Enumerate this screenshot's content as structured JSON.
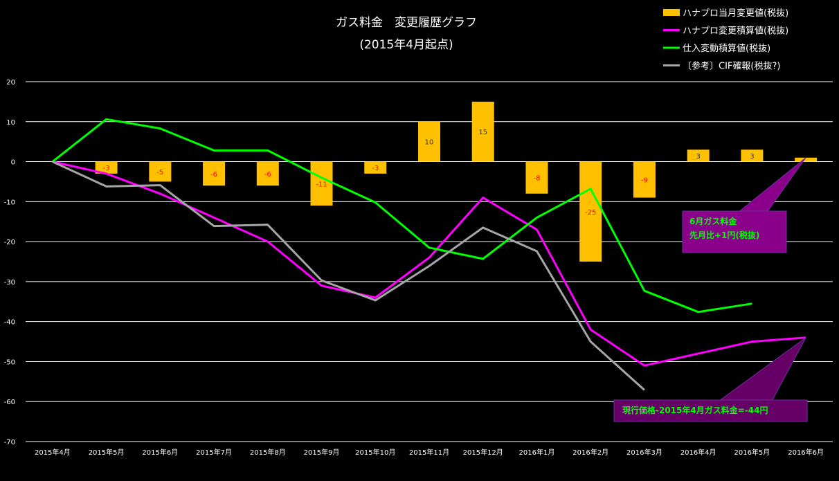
{
  "chart_data": {
    "type": "bar+line",
    "title_line1": "ガス料金　変更履歴グラフ",
    "title_line2": "(2015年4月起点)",
    "ylim": [
      -70,
      20
    ],
    "yticks": [
      20,
      10,
      0,
      -10,
      -20,
      -30,
      -40,
      -50,
      -60,
      -70
    ],
    "grid": true,
    "legend_position": "top-right",
    "categories": [
      "2015年4月",
      "2015年5月",
      "2015年6月",
      "2015年7月",
      "2015年8月",
      "2015年9月",
      "2015年10月",
      "2015年11月",
      "2015年12月",
      "2016年1月",
      "2016年2月",
      "2016年3月",
      "2016年4月",
      "2016年5月",
      "2016年6月"
    ],
    "bars": {
      "name": "ハナプロ当月変更値(税抜)",
      "color": "#FFC000",
      "values": [
        0,
        -3,
        -5,
        -6,
        -6,
        -11,
        -3,
        10,
        15,
        -8,
        -25,
        -9,
        3,
        3,
        1
      ],
      "labels": [
        "",
        "-3",
        "-5",
        "-6",
        "-6",
        "-11",
        "-3",
        "10",
        "15",
        "-8",
        "-25",
        "-9",
        "3",
        "3",
        ""
      ]
    },
    "series": [
      {
        "name": "ハナプロ変更積算値(税抜)",
        "color": "#FF00FF",
        "values": [
          0,
          -3,
          -8,
          -14,
          -20,
          -31,
          -34,
          -24,
          -9,
          -17,
          -42,
          -51,
          -48,
          -45,
          -44
        ]
      },
      {
        "name": "仕入変動積算値(税抜)",
        "color": "#00FF00",
        "values": [
          0,
          10.6,
          8.3,
          2.8,
          2.8,
          -4,
          -10.2,
          -21.5,
          -24.3,
          -14,
          -6.8,
          -32.3,
          -37.6,
          -35.5,
          null
        ]
      },
      {
        "name": "〔参考〕CIF確報(税抜?)",
        "color": "#A6A6A6",
        "values": [
          0,
          -6.2,
          -5.9,
          -16.1,
          -15.8,
          -29.7,
          -34.7,
          -26.1,
          -16.5,
          -22.4,
          -45,
          -57.1,
          null,
          null,
          null
        ]
      }
    ],
    "annotations": [
      {
        "text_lines": [
          "6月ガス料金",
          "先月比+1円(税抜)"
        ],
        "bg": "#8B008B",
        "text_color": "#00FF00",
        "points_to": {
          "category_index": 14,
          "value": 1
        }
      },
      {
        "text_lines": [
          "現行価格-2015年4月ガス料金=-44円"
        ],
        "bg": "#660066",
        "text_color": "#00FF00",
        "points_to": {
          "category_index": 14,
          "value": -44
        }
      }
    ]
  }
}
